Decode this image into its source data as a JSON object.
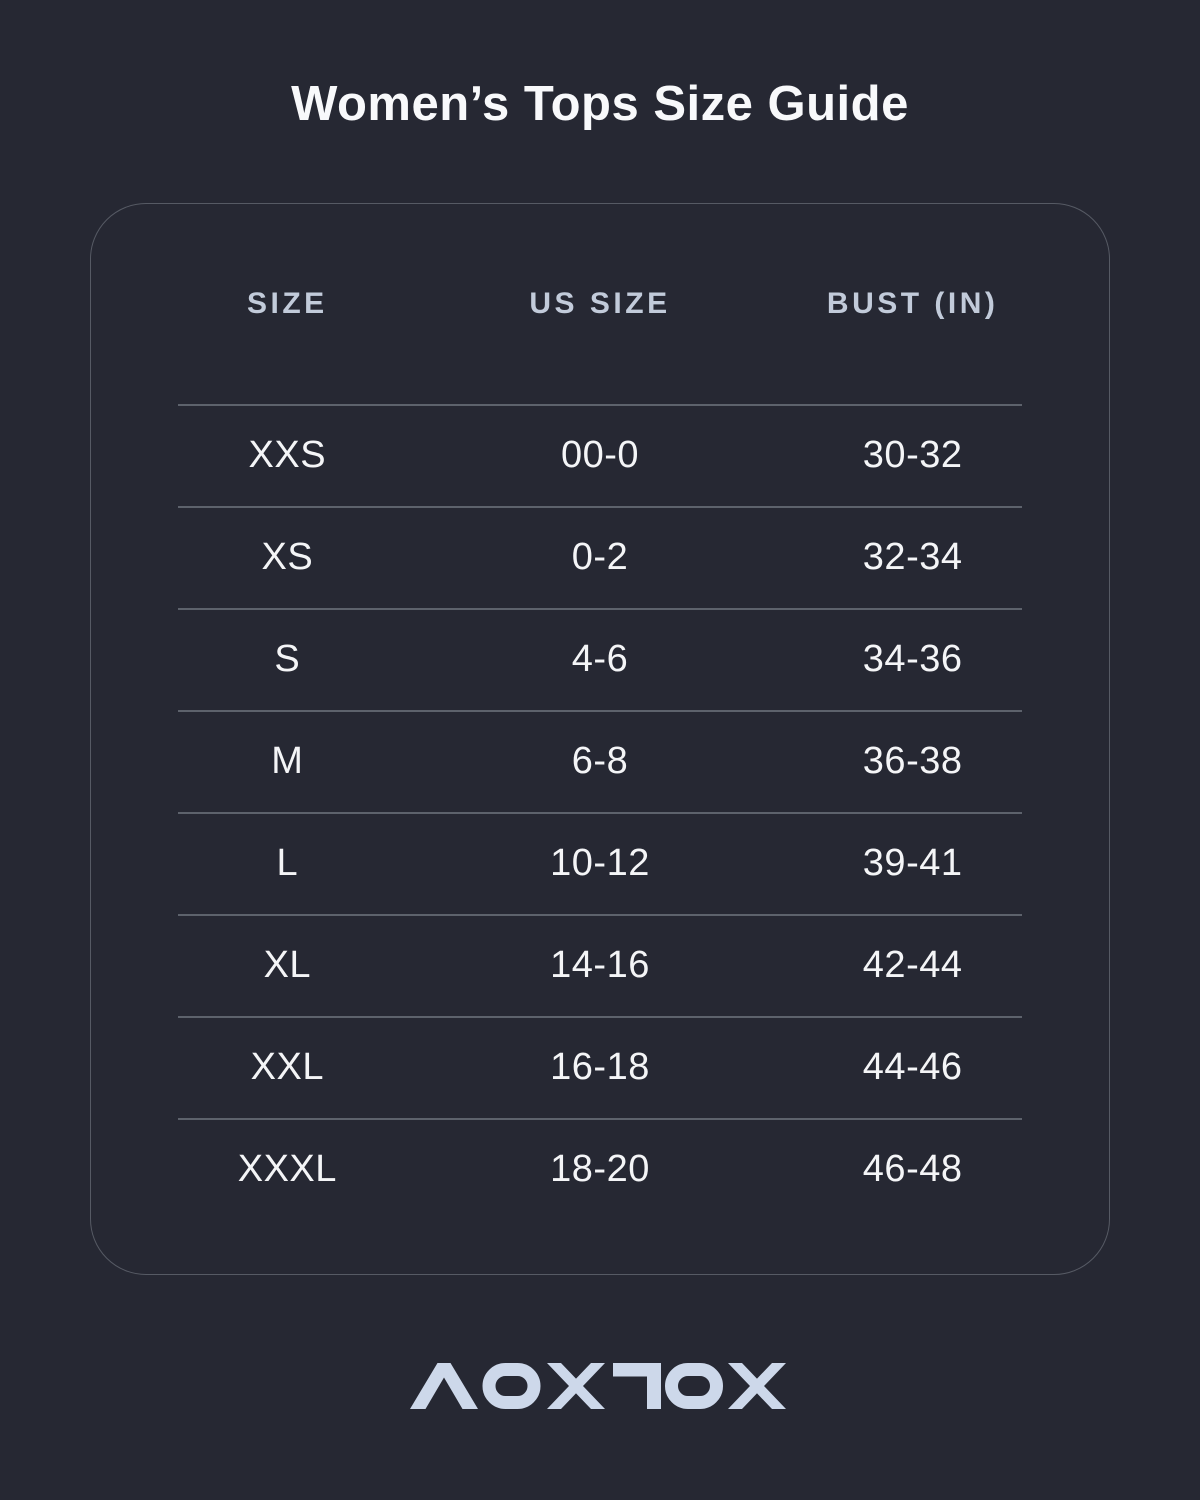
{
  "title": "Women’s Tops Size Guide",
  "brand": {
    "logo_text": "AOXJOX"
  },
  "table": {
    "columns": [
      "SIZE",
      "US SIZE",
      "BUST (IN)"
    ],
    "rows": [
      {
        "size": "XXS",
        "us_size": "00-0",
        "bust_in": "30-32"
      },
      {
        "size": "XS",
        "us_size": "0-2",
        "bust_in": "32-34"
      },
      {
        "size": "S",
        "us_size": "4-6",
        "bust_in": "34-36"
      },
      {
        "size": "M",
        "us_size": "6-8",
        "bust_in": "36-38"
      },
      {
        "size": "L",
        "us_size": "10-12",
        "bust_in": "39-41"
      },
      {
        "size": "XL",
        "us_size": "14-16",
        "bust_in": "42-44"
      },
      {
        "size": "XXL",
        "us_size": "16-18",
        "bust_in": "44-46"
      },
      {
        "size": "XXXL",
        "us_size": "18-20",
        "bust_in": "46-48"
      }
    ]
  },
  "chart_data": {
    "type": "table",
    "title": "Women’s Tops Size Guide",
    "columns": [
      "SIZE",
      "US SIZE",
      "BUST (IN)"
    ],
    "rows": [
      [
        "XXS",
        "00-0",
        "30-32"
      ],
      [
        "XS",
        "0-2",
        "32-34"
      ],
      [
        "S",
        "4-6",
        "34-36"
      ],
      [
        "M",
        "6-8",
        "36-38"
      ],
      [
        "L",
        "10-12",
        "39-41"
      ],
      [
        "XL",
        "14-16",
        "42-44"
      ],
      [
        "XXL",
        "16-18",
        "44-46"
      ],
      [
        "XXXL",
        "18-20",
        "46-48"
      ]
    ]
  },
  "colors": {
    "background": "#262833",
    "title_text": "#f8f9fb",
    "header_text": "#c2cbda",
    "body_text": "#f4f5f7",
    "divider": "#5d626c",
    "card_border": "#565a64",
    "logo": "#cdd8ea"
  }
}
